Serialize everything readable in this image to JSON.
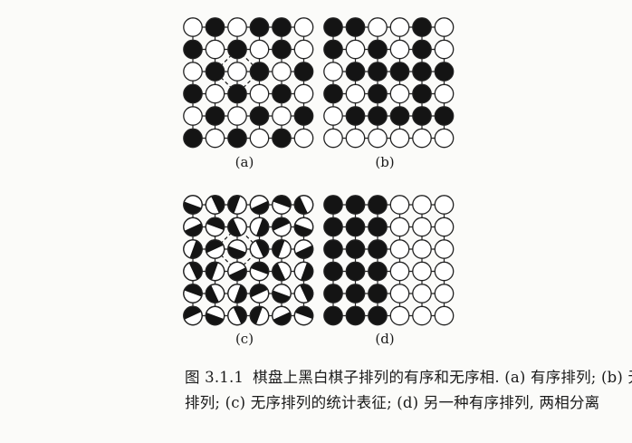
{
  "figure": {
    "panels": [
      {
        "id": "a",
        "label": "(a)",
        "kind": "binary",
        "dashed_square": true,
        "grid": [
          "WBWBBW",
          "BWBWBW",
          "WBWBWB",
          "BWBWBW",
          "WBWBWB",
          "BWBWBW"
        ]
      },
      {
        "id": "b",
        "label": "(b)",
        "kind": "binary",
        "dashed_square": false,
        "grid": [
          "BBWWBW",
          "BWBWBW",
          "WBBBBB",
          "BWBWBW",
          "WBBBBB",
          "WWWWWW"
        ]
      },
      {
        "id": "c",
        "label": "(c)",
        "kind": "half",
        "dashed_square": true,
        "grid": [
          "BBBBBB",
          "BBBBBB",
          "BBBBBB",
          "BBBBBB",
          "BBBBBB",
          "BBBBBB"
        ]
      },
      {
        "id": "d",
        "label": "(d)",
        "kind": "binary",
        "dashed_square": false,
        "grid": [
          "BBBWWW",
          "BBBWWW",
          "BBBWWW",
          "BBBWWW",
          "BBBWWW",
          "BBBWWW"
        ]
      }
    ],
    "colors": {
      "black_stone": "#141414",
      "white_stone": "#ffffff",
      "line": "#222222"
    }
  },
  "caption": {
    "label": "图 3.1.1",
    "line1": "棋盘上黑白棋子排列的有序和无序相. (a) 有序排列; (b) 无序",
    "line2": "排列; (c) 无序排列的统计表征; (d) 另一种有序排列, 两相分离"
  }
}
